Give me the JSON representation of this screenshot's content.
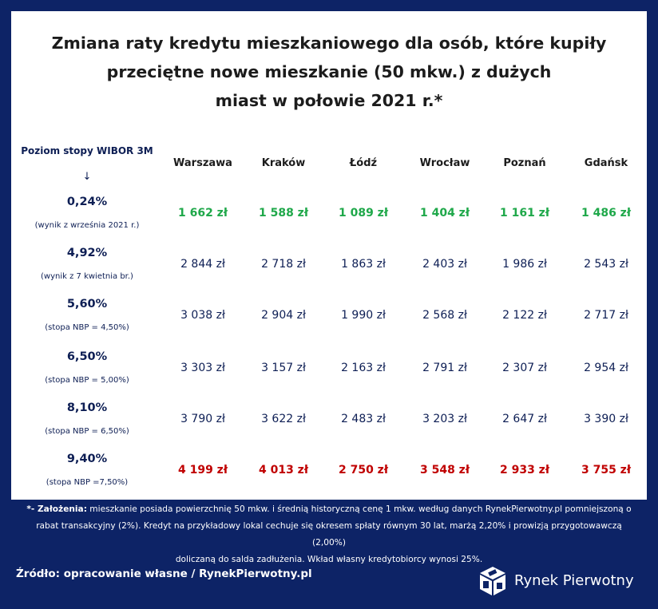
{
  "title_lines": [
    "Zmiana raty kredytu mieszkaniowego dla osób, które kupiły",
    "przeciętne nowe mieszkanie (50 mkw.) z dużych",
    "miast w połowie 2021 r.*"
  ],
  "row_header": "Poziom stopy WIBOR 3M",
  "arrow": "↓",
  "chart_data": {
    "type": "table",
    "columns": [
      "Warszawa",
      "Kraków",
      "Łódź",
      "Wrocław",
      "Poznań",
      "Gdańsk"
    ],
    "rows": [
      {
        "rate": "0,24%",
        "note": "(wynik z września 2021 r.)",
        "style": "green",
        "values": [
          "1 662 zł",
          "1 588 zł",
          "1 089 zł",
          "1 404 zł",
          "1 161 zł",
          "1 486 zł"
        ]
      },
      {
        "rate": "4,92%",
        "note": "(wynik z 7 kwietnia br.)",
        "style": "plain",
        "values": [
          "2 844 zł",
          "2 718 zł",
          "1 863 zł",
          "2 403 zł",
          "1 986 zł",
          "2 543 zł"
        ]
      },
      {
        "rate": "5,60%",
        "note": "(stopa NBP = 4,50%)",
        "style": "plain",
        "values": [
          "3 038 zł",
          "2 904 zł",
          "1 990 zł",
          "2 568 zł",
          "2 122 zł",
          "2 717 zł"
        ]
      },
      {
        "rate": "6,50%",
        "note": "(stopa NBP = 5,00%)",
        "style": "plain",
        "values": [
          "3 303 zł",
          "3 157 zł",
          "2 163 zł",
          "2 791 zł",
          "2 307 zł",
          "2 954 zł"
        ]
      },
      {
        "rate": "8,10%",
        "note": "(stopa NBP = 6,50%)",
        "style": "plain",
        "values": [
          "3 790 zł",
          "3 622 zł",
          "2 483 zł",
          "3 203 zł",
          "2 647 zł",
          "3 390 zł"
        ]
      },
      {
        "rate": "9,40%",
        "note": "(stopa NBP =7,50%)",
        "style": "red",
        "values": [
          "4 199 zł",
          "4 013 zł",
          "2 750 zł",
          "3 548 zł",
          "2 933 zł",
          "3 755 zł"
        ]
      }
    ]
  },
  "footnote": {
    "label": "*- Założenia:",
    "text1": " mieszkanie posiada powierzchnię 50 mkw. i średnią historyczną cenę 1 mkw. według danych RynekPierwotny.pl pomniejszoną o",
    "text2": "rabat transakcyjny (2%). Kredyt na przykładowy lokal cechuje się okresem spłaty równym 30 lat, marżą 2,20% i prowizją przygotowawczą (2,00%)",
    "text3": "doliczaną do salda zadłużenia. Wkład własny kredytobiorcy wynosi 25%."
  },
  "source": "Źródło: opracowanie własne / RynekPierwotny.pl",
  "logo_text": "Rynek Pierwotny",
  "colors": {
    "background": "#0d2366",
    "green": "#1fa84a",
    "red": "#c00000",
    "navy": "#0d1e54"
  }
}
